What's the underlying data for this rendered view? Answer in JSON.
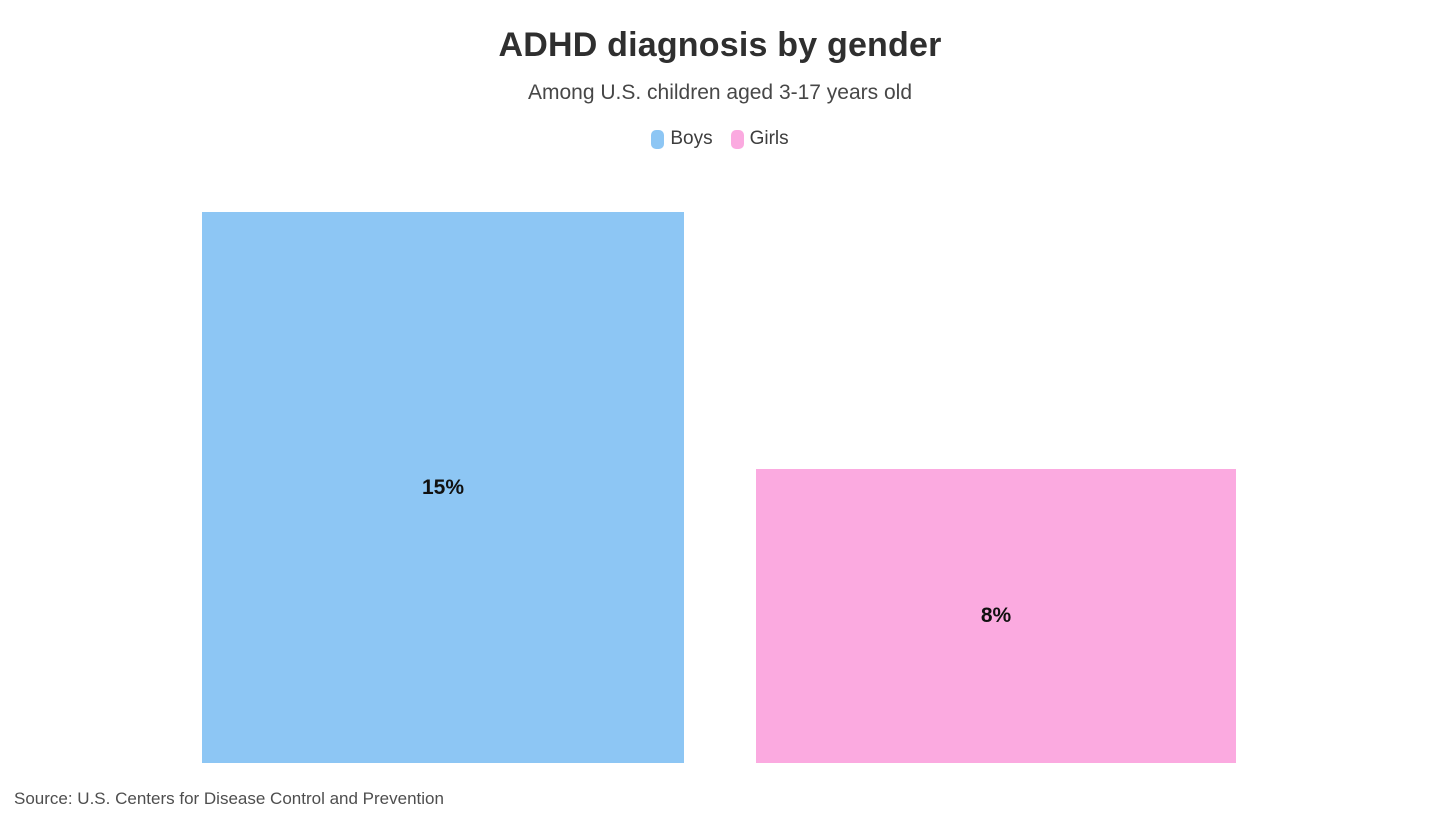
{
  "header": {
    "title": "ADHD diagnosis by gender",
    "subtitle": "Among U.S. children aged 3-17 years old"
  },
  "legend": [
    {
      "label": "Boys",
      "color": "#8dc6f4"
    },
    {
      "label": "Girls",
      "color": "#fbaae0"
    }
  ],
  "chart_data": {
    "type": "bar",
    "title": "ADHD diagnosis by gender",
    "subtitle": "Among U.S. children aged 3-17 years old",
    "categories": [
      "Boys",
      "Girls"
    ],
    "values": [
      15,
      8
    ],
    "value_labels": [
      "15%",
      "8%"
    ],
    "colors": [
      "#8dc6f4",
      "#fbaae0"
    ],
    "unit": "%",
    "xlabel": "",
    "ylabel": "",
    "ylim": [
      0,
      15
    ],
    "grid": false,
    "axes_visible": false,
    "legend_position": "top",
    "value_label_position": "center"
  },
  "footer": {
    "source": "Source: U.S. Centers for Disease Control and Prevention"
  }
}
